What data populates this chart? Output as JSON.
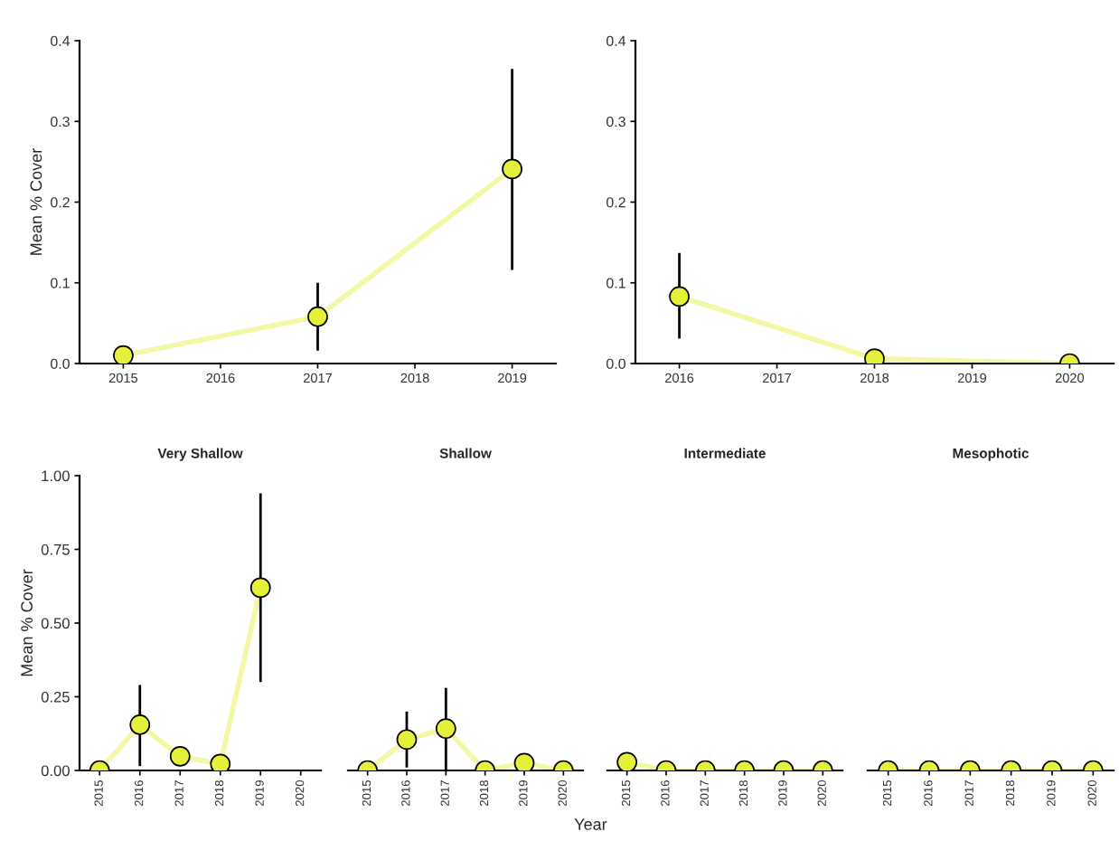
{
  "chart_data": [
    {
      "type": "line",
      "ylabel": "Mean % Cover",
      "x": [
        2015,
        2017,
        2019
      ],
      "xlim": [
        2014.55,
        2019.45
      ],
      "xticks": [
        2015,
        2016,
        2017,
        2018,
        2019
      ],
      "ylim": [
        0,
        0.4
      ],
      "yticks": [
        {
          "value": 0,
          "label": "0.0"
        },
        0.1,
        0.2,
        0.3,
        0.4
      ],
      "marker": "circle",
      "series": [
        {
          "color": "#e4f03a",
          "values": [
            0.01,
            0.058,
            0.241
          ],
          "errors": [
            null,
            [
              0.016,
              0.1
            ],
            [
              0.116,
              0.365
            ]
          ]
        }
      ]
    },
    {
      "type": "line",
      "x": [
        2016,
        2018,
        2020
      ],
      "xlim": [
        2015.55,
        2020.45
      ],
      "xticks": [
        2016,
        2017,
        2018,
        2019,
        2020
      ],
      "ylim": [
        0,
        0.4
      ],
      "yticks": [
        {
          "value": 0,
          "label": "0.0"
        },
        0.1,
        0.2,
        0.3,
        0.4
      ],
      "marker": "circle",
      "series": [
        {
          "color": "#e4f03a",
          "values": [
            0.083,
            0.006,
            0.0
          ],
          "errors": [
            [
              0.031,
              0.137
            ],
            null,
            null
          ]
        }
      ]
    },
    {
      "type": "line",
      "title": "Very Shallow",
      "ylabel": "Mean % Cover",
      "categories": [
        "2015",
        "2016",
        "2017",
        "2018",
        "2019",
        "2020"
      ],
      "ylim": [
        0,
        1.0
      ],
      "yticks": [
        {
          "value": 0,
          "label": "0.00"
        },
        {
          "value": 0.25,
          "label": "0.25"
        },
        {
          "value": 0.5,
          "label": "0.50"
        },
        {
          "value": 0.75,
          "label": "0.75"
        },
        {
          "value": 1.0,
          "label": "1.00"
        }
      ],
      "marker": "circle",
      "series": [
        {
          "color": "#e4f03a",
          "values": [
            0.0,
            0.155,
            0.048,
            0.022,
            0.62,
            null
          ],
          "errors": [
            null,
            [
              0.015,
              0.29
            ],
            null,
            null,
            [
              0.3,
              0.94
            ],
            null
          ]
        }
      ]
    },
    {
      "type": "line",
      "title": "Shallow",
      "categories": [
        "2015",
        "2016",
        "2017",
        "2018",
        "2019",
        "2020"
      ],
      "ylim": [
        0,
        1.0
      ],
      "tick_labels": "x",
      "marker": "circle",
      "series": [
        {
          "color": "#e4f03a",
          "values": [
            0.0,
            0.105,
            0.142,
            0.0,
            0.025,
            0.0
          ],
          "errors": [
            null,
            [
              0.01,
              0.2
            ],
            [
              0.0,
              0.28
            ],
            null,
            null,
            null
          ]
        }
      ]
    },
    {
      "type": "line",
      "title": "Intermediate",
      "xlabel": "Year",
      "categories": [
        "2015",
        "2016",
        "2017",
        "2018",
        "2019",
        "2020"
      ],
      "ylim": [
        0,
        1.0
      ],
      "tick_labels": "x",
      "marker": "circle",
      "series": [
        {
          "color": "#e4f03a",
          "values": [
            0.028,
            0.0,
            0.0,
            0.0,
            0.0,
            0.0
          ]
        }
      ]
    },
    {
      "type": "line",
      "title": "Mesophotic",
      "categories": [
        "2015",
        "2016",
        "2017",
        "2018",
        "2019",
        "2020"
      ],
      "ylim": [
        0,
        1.0
      ],
      "tick_labels": "x",
      "marker": "circle",
      "series": [
        {
          "color": "#e4f03a",
          "values": [
            0.0,
            0.0,
            0.0,
            0.0,
            0.0,
            0.0
          ]
        }
      ]
    }
  ]
}
